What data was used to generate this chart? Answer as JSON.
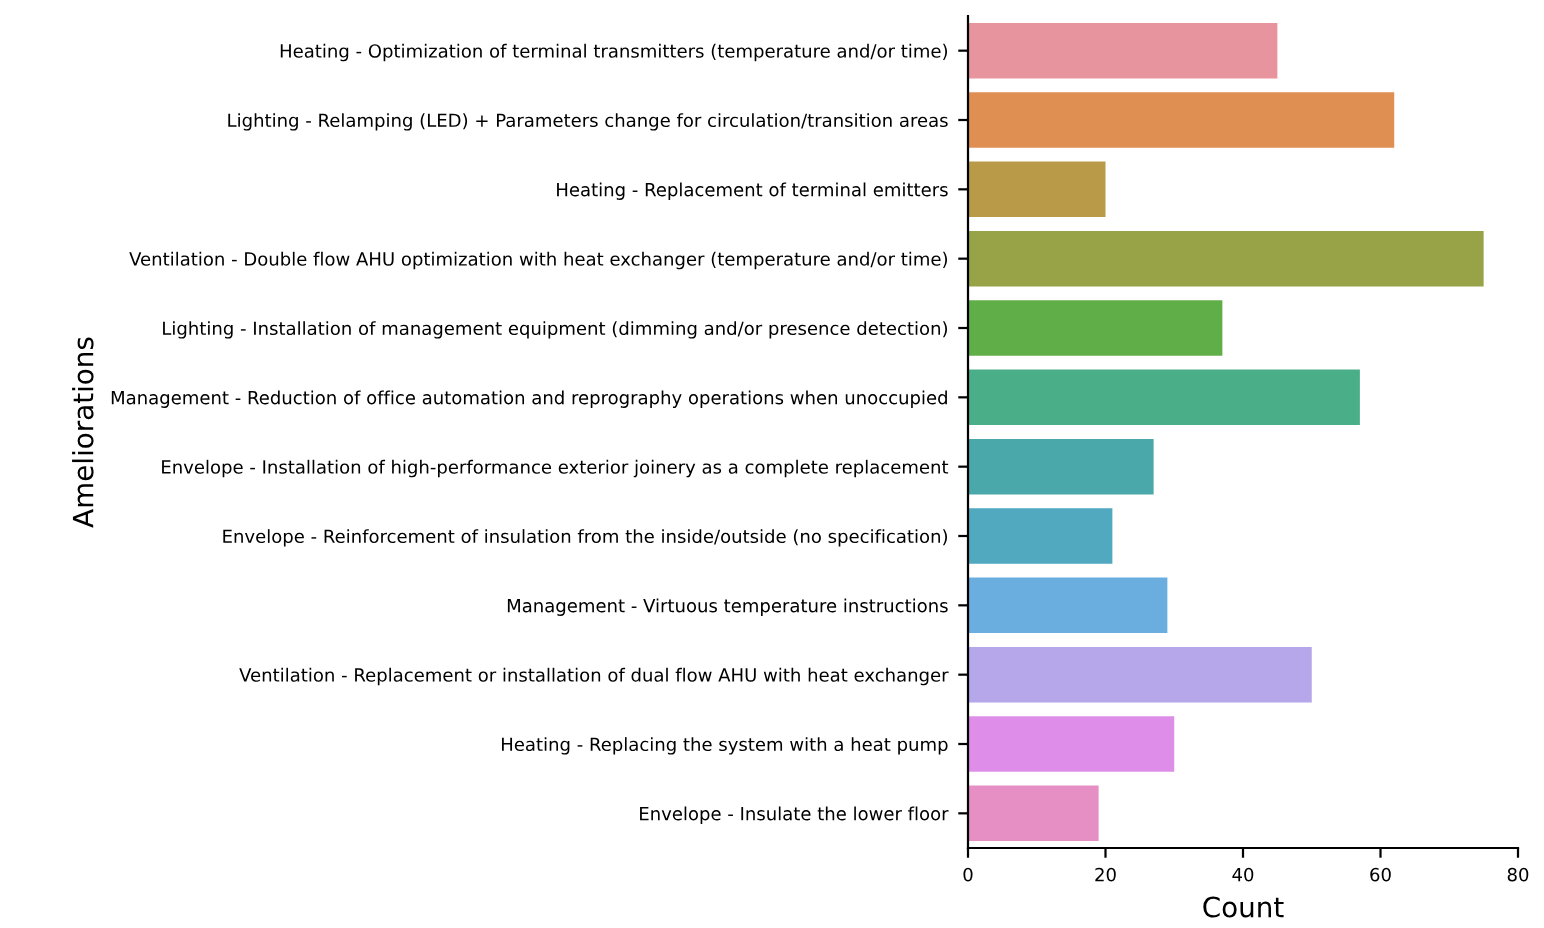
{
  "chart_data": {
    "type": "bar",
    "orientation": "horizontal",
    "xlabel": "Count",
    "ylabel": "Ameliorations",
    "categories": [
      "Heating - Optimization of terminal transmitters (temperature and/or time)",
      "Lighting - Relamping (LED) + Parameters change for circulation/transition areas",
      "Heating - Replacement of terminal emitters",
      "Ventilation - Double flow AHU optimization with heat exchanger (temperature and/or time)",
      "Lighting - Installation of management equipment (dimming and/or presence detection)",
      "Management - Reduction of office automation and reprography operations when unoccupied",
      "Envelope - Installation of high-performance exterior joinery as a complete replacement",
      "Envelope - Reinforcement of insulation from the inside/outside (no specification)",
      "Management - Virtuous temperature instructions",
      "Ventilation - Replacement or installation of dual flow AHU with heat exchanger",
      "Heating - Replacing the system with a heat pump",
      "Envelope - Insulate the lower floor"
    ],
    "values": [
      45,
      62,
      20,
      75,
      37,
      57,
      27,
      21,
      29,
      50,
      30,
      19
    ],
    "colors": [
      "#e8949f",
      "#e08f52",
      "#b89a48",
      "#98a247",
      "#60ae47",
      "#4aae88",
      "#4ba8aa",
      "#50a9bf",
      "#6aaee0",
      "#b6a6ea",
      "#de8ee8",
      "#e68fc4"
    ],
    "xlim": [
      0,
      80
    ],
    "xticks": [
      0,
      20,
      40,
      60,
      80
    ],
    "grid": false,
    "legend": false
  }
}
